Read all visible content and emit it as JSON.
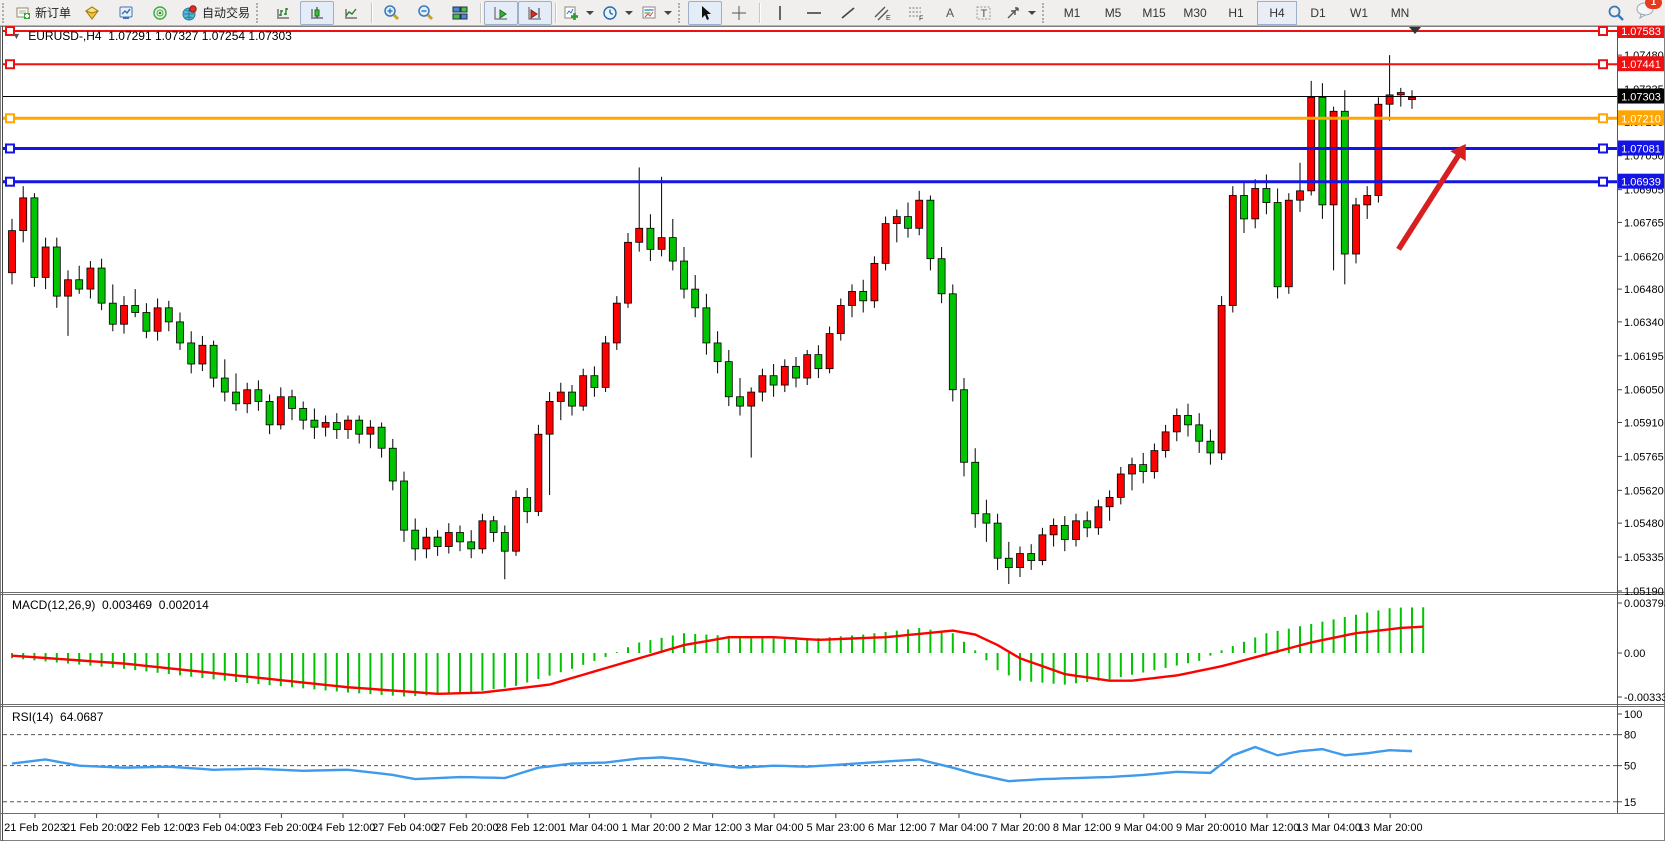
{
  "toolbar": {
    "new_order_label": "新订单",
    "auto_trading_label": "自动交易",
    "timeframes": [
      "M1",
      "M5",
      "M15",
      "M30",
      "H1",
      "H4",
      "D1",
      "W1",
      "MN"
    ],
    "active_timeframe": "H4",
    "notification_count": "1",
    "icons": [
      "new-order",
      "metaeditor",
      "market-watch",
      "signals",
      "auto-trading",
      "bar-chart",
      "candlestick-chart",
      "line-chart",
      "zoom-in",
      "zoom-out",
      "tile-windows",
      "auto-scroll",
      "chart-shift",
      "indicators",
      "periods",
      "templates",
      "cursor",
      "crosshair",
      "vertical-line",
      "horizontal-line",
      "trendline",
      "equidistant-channel",
      "fibonacci",
      "text",
      "text-label",
      "arrows",
      "search",
      "notifications"
    ]
  },
  "chart": {
    "symbol_period": "EURUSD-,H4",
    "ohlc_text": "1.07291 1.07327 1.07254 1.07303"
  },
  "levels": [
    {
      "label": "1.07583",
      "price": 1.07583,
      "color": "#ee1111",
      "width": 2,
      "handles": true
    },
    {
      "label": "1.07441",
      "price": 1.07441,
      "color": "#ee1111",
      "width": 2,
      "handles": true
    },
    {
      "label": "1.07303",
      "price": 1.07303,
      "color": "#000000",
      "width": 1,
      "handles": false,
      "current": true
    },
    {
      "label": "1.07210",
      "price": 1.0721,
      "color": "#ffa600",
      "width": 3,
      "handles": true
    },
    {
      "label": "1.07081",
      "price": 1.07081,
      "color": "#1414e6",
      "width": 3,
      "handles": true
    },
    {
      "label": "1.06939",
      "price": 1.06939,
      "color": "#1414e6",
      "width": 3,
      "handles": true
    }
  ],
  "price_axis": {
    "ticks": [
      "1.07480",
      "1.07335",
      "1.07195",
      "1.07050",
      "1.06905",
      "1.06765",
      "1.06620",
      "1.06480",
      "1.06340",
      "1.06195",
      "1.06050",
      "1.05910",
      "1.05765",
      "1.05620",
      "1.05480",
      "1.05335",
      "1.05190"
    ],
    "top_price": 1.07583,
    "bottom_price": 1.0519
  },
  "time_axis": [
    "21 Feb 2023",
    "21 Feb 20:00",
    "22 Feb 12:00",
    "23 Feb 04:00",
    "23 Feb 20:00",
    "24 Feb 12:00",
    "27 Feb 04:00",
    "27 Feb 20:00",
    "28 Feb 12:00",
    "1 Mar 04:00",
    "1 Mar 20:00",
    "2 Mar 12:00",
    "3 Mar 04:00",
    "5 Mar 23:00",
    "6 Mar 12:00",
    "7 Mar 04:00",
    "7 Mar 20:00",
    "8 Mar 12:00",
    "9 Mar 04:00",
    "9 Mar 20:00",
    "10 Mar 12:00",
    "13 Mar 04:00",
    "13 Mar 20:00"
  ],
  "macd": {
    "label": "MACD(12,26,9)",
    "value_main": "0.003469",
    "value_signal": "0.002014",
    "axis_labels": [
      "0.003793",
      "0.00",
      "-0.003339"
    ],
    "axis_values": [
      0.003793,
      0.0,
      -0.003339
    ]
  },
  "rsi": {
    "label": "RSI(14)",
    "value": "64.0687",
    "axis_labels": [
      "100",
      "80",
      "50",
      "15"
    ],
    "axis_values": [
      100,
      80,
      50,
      15
    ],
    "dashed_levels": [
      80,
      50,
      15
    ]
  },
  "annotation": {
    "type": "arrow",
    "color": "#d81f1f",
    "from_price": 1.0665,
    "to_price": 1.071,
    "from_index": 123.8,
    "to_index": 129.8
  },
  "colors": {
    "bull": "#ff0000",
    "bear": "#00c400",
    "macd_hist": "#00c400",
    "macd_signal": "#ff0000",
    "rsi_line": "#3e9aec",
    "axis_text": "#000000"
  },
  "chart_data": {
    "type": "candlestick",
    "symbol": "EURUSD",
    "timeframe": "H4",
    "note": "OHLC estimated from pixels; red=bullish, green=bearish (Chinese convention)",
    "candles": [
      [
        1.0655,
        1.0678,
        1.065,
        1.0673
      ],
      [
        1.0673,
        1.0692,
        1.0668,
        1.0687
      ],
      [
        1.0687,
        1.0689,
        1.0649,
        1.0653
      ],
      [
        1.0653,
        1.067,
        1.0648,
        1.0666
      ],
      [
        1.0666,
        1.067,
        1.064,
        1.0645
      ],
      [
        1.0645,
        1.0656,
        1.0628,
        1.0652
      ],
      [
        1.0652,
        1.0658,
        1.0646,
        1.0648
      ],
      [
        1.0648,
        1.066,
        1.0644,
        1.0657
      ],
      [
        1.0657,
        1.0661,
        1.0639,
        1.0642
      ],
      [
        1.0642,
        1.065,
        1.063,
        1.0633
      ],
      [
        1.0633,
        1.0645,
        1.0629,
        1.0641
      ],
      [
        1.0641,
        1.0648,
        1.0636,
        1.0638
      ],
      [
        1.0638,
        1.0642,
        1.0627,
        1.063
      ],
      [
        1.063,
        1.0644,
        1.0626,
        1.064
      ],
      [
        1.064,
        1.0643,
        1.063,
        1.0634
      ],
      [
        1.0634,
        1.0638,
        1.0622,
        1.0625
      ],
      [
        1.0625,
        1.063,
        1.0612,
        1.0616
      ],
      [
        1.0616,
        1.0628,
        1.0613,
        1.0624
      ],
      [
        1.0624,
        1.0626,
        1.0606,
        1.061
      ],
      [
        1.061,
        1.0618,
        1.06,
        1.0604
      ],
      [
        1.0604,
        1.0612,
        1.0596,
        1.0599
      ],
      [
        1.0599,
        1.0608,
        1.0595,
        1.0605
      ],
      [
        1.0605,
        1.0609,
        1.0596,
        1.06
      ],
      [
        1.06,
        1.0603,
        1.0586,
        1.059
      ],
      [
        1.059,
        1.0606,
        1.0588,
        1.0602
      ],
      [
        1.0602,
        1.0605,
        1.0592,
        1.0597
      ],
      [
        1.0597,
        1.06,
        1.0588,
        1.0592
      ],
      [
        1.0592,
        1.0597,
        1.0584,
        1.0589
      ],
      [
        1.0589,
        1.0594,
        1.0585,
        1.0591
      ],
      [
        1.0591,
        1.0595,
        1.0584,
        1.0588
      ],
      [
        1.0588,
        1.0594,
        1.0584,
        1.0592
      ],
      [
        1.0592,
        1.0594,
        1.0582,
        1.0586
      ],
      [
        1.0586,
        1.0592,
        1.058,
        1.0589
      ],
      [
        1.0589,
        1.0591,
        1.0576,
        1.058
      ],
      [
        1.058,
        1.0584,
        1.0562,
        1.0566
      ],
      [
        1.0566,
        1.057,
        1.054,
        1.0545
      ],
      [
        1.0545,
        1.055,
        1.0532,
        1.0537
      ],
      [
        1.0537,
        1.0546,
        1.0533,
        1.0542
      ],
      [
        1.0542,
        1.0545,
        1.0534,
        1.0538
      ],
      [
        1.0538,
        1.0548,
        1.0535,
        1.0544
      ],
      [
        1.0544,
        1.0547,
        1.0536,
        1.054
      ],
      [
        1.054,
        1.0545,
        1.0533,
        1.0537
      ],
      [
        1.0537,
        1.0552,
        1.0535,
        1.0549
      ],
      [
        1.0549,
        1.0551,
        1.054,
        1.0544
      ],
      [
        1.0544,
        1.0547,
        1.0524,
        1.0536
      ],
      [
        1.0536,
        1.0562,
        1.0534,
        1.0559
      ],
      [
        1.0559,
        1.0563,
        1.0548,
        1.0553
      ],
      [
        1.0553,
        1.059,
        1.0551,
        1.0586
      ],
      [
        1.0586,
        1.0604,
        1.056,
        1.06
      ],
      [
        1.06,
        1.0608,
        1.0592,
        1.0604
      ],
      [
        1.0604,
        1.0607,
        1.0594,
        1.0598
      ],
      [
        1.0598,
        1.0614,
        1.0596,
        1.0611
      ],
      [
        1.0611,
        1.0615,
        1.0602,
        1.0606
      ],
      [
        1.0606,
        1.0628,
        1.0604,
        1.0625
      ],
      [
        1.0625,
        1.0645,
        1.0622,
        1.0642
      ],
      [
        1.0642,
        1.0672,
        1.064,
        1.0668
      ],
      [
        1.0668,
        1.07,
        1.0664,
        1.0674
      ],
      [
        1.0674,
        1.068,
        1.066,
        1.0665
      ],
      [
        1.0665,
        1.0696,
        1.0662,
        1.067
      ],
      [
        1.067,
        1.0678,
        1.0656,
        1.066
      ],
      [
        1.066,
        1.0666,
        1.0644,
        1.0648
      ],
      [
        1.0648,
        1.0654,
        1.0636,
        1.064
      ],
      [
        1.064,
        1.0646,
        1.062,
        1.0625
      ],
      [
        1.0625,
        1.063,
        1.0612,
        1.0617
      ],
      [
        1.0617,
        1.0622,
        1.0598,
        1.0602
      ],
      [
        1.0602,
        1.061,
        1.0594,
        1.0598
      ],
      [
        1.0598,
        1.0606,
        1.0576,
        1.0604
      ],
      [
        1.0604,
        1.0614,
        1.06,
        1.0611
      ],
      [
        1.0611,
        1.0616,
        1.0602,
        1.0607
      ],
      [
        1.0607,
        1.0618,
        1.0604,
        1.0615
      ],
      [
        1.0615,
        1.0619,
        1.0606,
        1.061
      ],
      [
        1.061,
        1.0622,
        1.0607,
        1.062
      ],
      [
        1.062,
        1.0624,
        1.061,
        1.0614
      ],
      [
        1.0614,
        1.0632,
        1.0612,
        1.0629
      ],
      [
        1.0629,
        1.0644,
        1.0626,
        1.0641
      ],
      [
        1.0641,
        1.065,
        1.0636,
        1.0647
      ],
      [
        1.0647,
        1.0652,
        1.0638,
        1.0643
      ],
      [
        1.0643,
        1.0662,
        1.064,
        1.0659
      ],
      [
        1.0659,
        1.0679,
        1.0656,
        1.0676
      ],
      [
        1.0676,
        1.0682,
        1.0668,
        1.0679
      ],
      [
        1.0679,
        1.0685,
        1.067,
        1.0674
      ],
      [
        1.0674,
        1.069,
        1.0671,
        1.0686
      ],
      [
        1.0686,
        1.0688,
        1.0656,
        1.0661
      ],
      [
        1.0661,
        1.0666,
        1.0642,
        1.0646
      ],
      [
        1.0646,
        1.065,
        1.06,
        1.0605
      ],
      [
        1.0605,
        1.061,
        1.0568,
        1.0574
      ],
      [
        1.0574,
        1.058,
        1.0546,
        1.0552
      ],
      [
        1.0552,
        1.0558,
        1.054,
        1.0548
      ],
      [
        1.0548,
        1.0552,
        1.0528,
        1.0533
      ],
      [
        1.0533,
        1.054,
        1.0522,
        1.0529
      ],
      [
        1.0529,
        1.0538,
        1.0525,
        1.0535
      ],
      [
        1.0535,
        1.0539,
        1.0528,
        1.0532
      ],
      [
        1.0532,
        1.0546,
        1.053,
        1.0543
      ],
      [
        1.0543,
        1.055,
        1.0538,
        1.0547
      ],
      [
        1.0547,
        1.0551,
        1.0536,
        1.0541
      ],
      [
        1.0541,
        1.0552,
        1.0538,
        1.0549
      ],
      [
        1.0549,
        1.0553,
        1.0542,
        1.0546
      ],
      [
        1.0546,
        1.0558,
        1.0543,
        1.0555
      ],
      [
        1.0555,
        1.0562,
        1.0549,
        1.0559
      ],
      [
        1.0559,
        1.0572,
        1.0556,
        1.0569
      ],
      [
        1.0569,
        1.0576,
        1.0562,
        1.0573
      ],
      [
        1.0573,
        1.0578,
        1.0565,
        1.057
      ],
      [
        1.057,
        1.0582,
        1.0567,
        1.0579
      ],
      [
        1.0579,
        1.059,
        1.0576,
        1.0587
      ],
      [
        1.0587,
        1.0597,
        1.0583,
        1.0594
      ],
      [
        1.0594,
        1.0599,
        1.0585,
        1.059
      ],
      [
        1.059,
        1.0595,
        1.0578,
        1.0583
      ],
      [
        1.0583,
        1.0588,
        1.0573,
        1.0578
      ],
      [
        1.0578,
        1.0645,
        1.0575,
        1.0641
      ],
      [
        1.0641,
        1.0692,
        1.0638,
        1.0688
      ],
      [
        1.0688,
        1.0694,
        1.0672,
        1.0678
      ],
      [
        1.0678,
        1.0695,
        1.0674,
        1.0691
      ],
      [
        1.0691,
        1.0697,
        1.068,
        1.0685
      ],
      [
        1.0685,
        1.0691,
        1.0644,
        1.0649
      ],
      [
        1.0649,
        1.0689,
        1.0646,
        1.0686
      ],
      [
        1.0686,
        1.0702,
        1.0681,
        1.069
      ],
      [
        1.069,
        1.0737,
        1.0688,
        1.073
      ],
      [
        1.073,
        1.0736,
        1.0678,
        1.0684
      ],
      [
        1.0684,
        1.0726,
        1.0656,
        1.0724
      ],
      [
        1.0724,
        1.0733,
        1.065,
        1.0663
      ],
      [
        1.0663,
        1.0687,
        1.0659,
        1.0684
      ],
      [
        1.0684,
        1.0692,
        1.0678,
        1.0688
      ],
      [
        1.0688,
        1.073,
        1.0685,
        1.0727
      ],
      [
        1.0727,
        1.0748,
        1.072,
        1.0731
      ],
      [
        1.0731,
        1.0734,
        1.0726,
        1.0732
      ],
      [
        1.0729,
        1.0733,
        1.0725,
        1.073
      ]
    ],
    "macd_histogram": [
      -0.0004,
      -0.00048,
      -0.00056,
      -0.00064,
      -0.00072,
      -0.0008,
      -0.00088,
      -0.00096,
      -0.00104,
      -0.00112,
      -0.0012,
      -0.0013,
      -0.0014,
      -0.0015,
      -0.0016,
      -0.0017,
      -0.0018,
      -0.0019,
      -0.002,
      -0.0021,
      -0.0022,
      -0.00228,
      -0.00236,
      -0.00244,
      -0.00252,
      -0.0026,
      -0.00268,
      -0.00276,
      -0.00284,
      -0.00292,
      -0.003,
      -0.00306,
      -0.00312,
      -0.00318,
      -0.00324,
      -0.0033,
      -0.00326,
      -0.00322,
      -0.00318,
      -0.00314,
      -0.0031,
      -0.00298,
      -0.00286,
      -0.00274,
      -0.00262,
      -0.0025,
      -0.00224,
      -0.00198,
      -0.00172,
      -0.00146,
      -0.0012,
      -0.0009,
      -0.0006,
      -0.0003,
      7e-05,
      0.00044,
      0.0008,
      0.00098,
      0.00115,
      0.00133,
      0.0015,
      0.00145,
      0.0014,
      0.00135,
      0.0013,
      0.00125,
      0.0012,
      0.00115,
      0.0011,
      0.00105,
      0.001,
      0.00107,
      0.00113,
      0.0012,
      0.00127,
      0.00133,
      0.0014,
      0.0015,
      0.0016,
      0.0017,
      0.0018,
      0.0019,
      0.00177,
      0.00163,
      0.0015,
      0.00085,
      0.0002,
      -0.00055,
      -0.0013,
      -0.0017,
      -0.0021,
      -0.00218,
      -0.00225,
      -0.00233,
      -0.0024,
      -0.0023,
      -0.0022,
      -0.0021,
      -0.002,
      -0.00183,
      -0.00165,
      -0.00148,
      -0.0013,
      -0.00113,
      -0.00095,
      -0.00078,
      -0.0006,
      -0.0002,
      0.0002,
      0.00053,
      0.00085,
      0.00118,
      0.0015,
      0.00168,
      0.00185,
      0.00203,
      0.0022,
      0.00238,
      0.00255,
      0.00273,
      0.0029,
      0.00307,
      0.00323,
      0.0034,
      0.00345,
      0.00346,
      0.00347
    ],
    "macd_signal": [
      -0.0002,
      -0.00026,
      -0.00032,
      -0.00038,
      -0.00044,
      -0.0005,
      -0.00056,
      -0.00062,
      -0.00068,
      -0.00074,
      -0.0008,
      -0.00089,
      -0.00098,
      -0.00107,
      -0.00116,
      -0.00125,
      -0.00134,
      -0.00143,
      -0.00152,
      -0.00161,
      -0.0017,
      -0.00179,
      -0.00188,
      -0.00197,
      -0.00206,
      -0.00215,
      -0.00224,
      -0.00233,
      -0.00242,
      -0.00251,
      -0.0026,
      -0.00266,
      -0.00272,
      -0.00279,
      -0.00285,
      -0.00291,
      -0.00297,
      -0.00304,
      -0.0031,
      -0.00308,
      -0.00305,
      -0.00303,
      -0.003,
      -0.0029,
      -0.0028,
      -0.0027,
      -0.0026,
      -0.0025,
      -0.0024,
      -0.00215,
      -0.0019,
      -0.00165,
      -0.0014,
      -0.00115,
      -0.0009,
      -0.00065,
      -0.0004,
      -0.00015,
      0.0001,
      0.00035,
      0.0006,
      0.00075,
      0.0009,
      0.00105,
      0.0012,
      0.0012,
      0.0012,
      0.0012,
      0.0012,
      0.00115,
      0.0011,
      0.00105,
      0.001,
      0.00103,
      0.00107,
      0.0011,
      0.00113,
      0.00117,
      0.0012,
      0.00128,
      0.00137,
      0.00145,
      0.00153,
      0.00162,
      0.0017,
      0.00155,
      0.0014,
      0.001,
      0.0006,
      0.0001,
      -0.0004,
      -0.0007,
      -0.001,
      -0.0013,
      -0.0016,
      -0.00173,
      -0.00185,
      -0.00198,
      -0.0021,
      -0.0021,
      -0.0021,
      -0.002,
      -0.0019,
      -0.0018,
      -0.0017,
      -0.00153,
      -0.00135,
      -0.00118,
      -0.001,
      -0.00078,
      -0.00055,
      -0.00033,
      -0.0001,
      0.00013,
      0.00035,
      0.00058,
      0.0008,
      0.00098,
      0.00115,
      0.00133,
      0.0015,
      0.0016,
      0.0017,
      0.0018,
      0.0019,
      0.00195,
      0.002
    ],
    "rsi_values": [
      52,
      53.3,
      54.7,
      56,
      54,
      52,
      50,
      49.5,
      49,
      48.5,
      48,
      48.3,
      48.5,
      48.8,
      49,
      48.3,
      47.5,
      46.8,
      46,
      46.3,
      46.5,
      46.8,
      47,
      46.5,
      46,
      45.5,
      45,
      45.3,
      45.5,
      45.8,
      46,
      44.8,
      43.5,
      42.3,
      41,
      39,
      37,
      37.5,
      38,
      38.5,
      39,
      38.8,
      38.5,
      38.3,
      38,
      41.3,
      44.7,
      48,
      49.3,
      50.7,
      52,
      52.3,
      52.7,
      53,
      54.3,
      55.7,
      57,
      57.5,
      58,
      57,
      56,
      54,
      52,
      50.7,
      49.3,
      48,
      48.7,
      49.3,
      50,
      49.7,
      49.3,
      49,
      49.7,
      50.3,
      51,
      51.8,
      52.5,
      53.3,
      54,
      54.7,
      55.3,
      56,
      53.3,
      50.7,
      48,
      45,
      42,
      39.7,
      37.3,
      35,
      35.7,
      36.3,
      37,
      37.3,
      37.7,
      38,
      38.3,
      38.7,
      39,
      39.7,
      40.3,
      41,
      42,
      43,
      44,
      43.7,
      43.3,
      43,
      51.5,
      60,
      64,
      68,
      64,
      60,
      62,
      64,
      65,
      66,
      63,
      60,
      61,
      62,
      63.5,
      65,
      64.5,
      64.07
    ]
  }
}
